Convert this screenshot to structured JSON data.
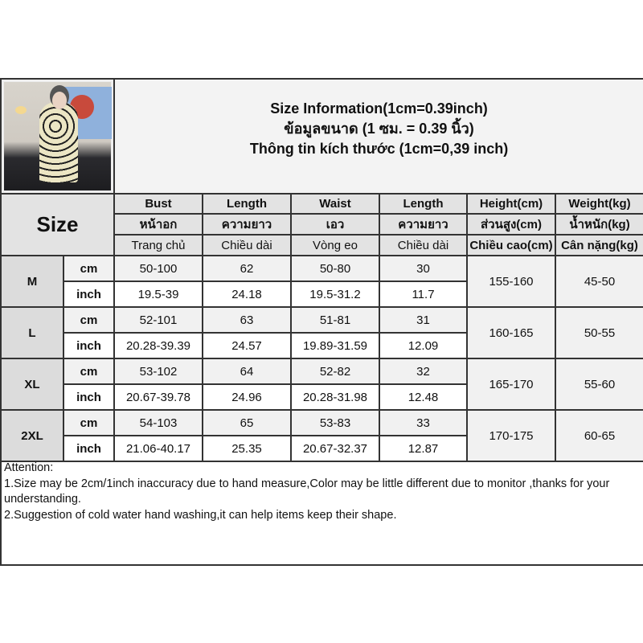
{
  "title": {
    "line1": "Size Information(1cm=0.39inch)",
    "line2": "ข้อมูลขนาด (1 ซม. = 0.39 นิ้ว)",
    "line3": "Thông tin kích thước (1cm=0,39 inch)"
  },
  "size_header": "Size",
  "columns": [
    {
      "en": "Bust",
      "th": "หน้าอก",
      "vi": "Trang chủ"
    },
    {
      "en": "Length",
      "th": "ความยาว",
      "vi": "Chiều dài"
    },
    {
      "en": "Waist",
      "th": "เอว",
      "vi": "Vòng eo"
    },
    {
      "en": "Length",
      "th": "ความยาว",
      "vi": "Chiều dài"
    },
    {
      "en": "Height(cm)",
      "th": "ส่วนสูง(cm)",
      "vi": "Chiều cao(cm)"
    },
    {
      "en": "Weight(kg)",
      "th": "น้ำหนัก(kg)",
      "vi": "Cân nặng(kg)"
    }
  ],
  "units": {
    "cm": "cm",
    "inch": "inch"
  },
  "sizes": [
    {
      "size": "M",
      "cm": [
        "50-100",
        "62",
        "50-80",
        "30"
      ],
      "inch": [
        "19.5-39",
        "24.18",
        "19.5-31.2",
        "11.7"
      ],
      "height": "155-160",
      "weight": "45-50"
    },
    {
      "size": "L",
      "cm": [
        "52-101",
        "63",
        "51-81",
        "31"
      ],
      "inch": [
        "20.28-39.39",
        "24.57",
        "19.89-31.59",
        "12.09"
      ],
      "height": "160-165",
      "weight": "50-55"
    },
    {
      "size": "XL",
      "cm": [
        "53-102",
        "64",
        "52-82",
        "32"
      ],
      "inch": [
        "20.67-39.78",
        "24.96",
        "20.28-31.98",
        "12.48"
      ],
      "height": "165-170",
      "weight": "55-60"
    },
    {
      "size": "2XL",
      "cm": [
        "54-103",
        "65",
        "53-83",
        "33"
      ],
      "inch": [
        "21.06-40.17",
        "25.35",
        "20.67-32.37",
        "12.87"
      ],
      "height": "170-175",
      "weight": "60-65"
    }
  ],
  "attention": {
    "heading": "Attention:",
    "note1": "1.Size may be 2cm/1inch inaccuracy due to hand measure,Color may be little different due to monitor ,thanks for your understanding.",
    "note2": "2.Suggestion of cold water hand washing,it can help items keep their shape."
  }
}
